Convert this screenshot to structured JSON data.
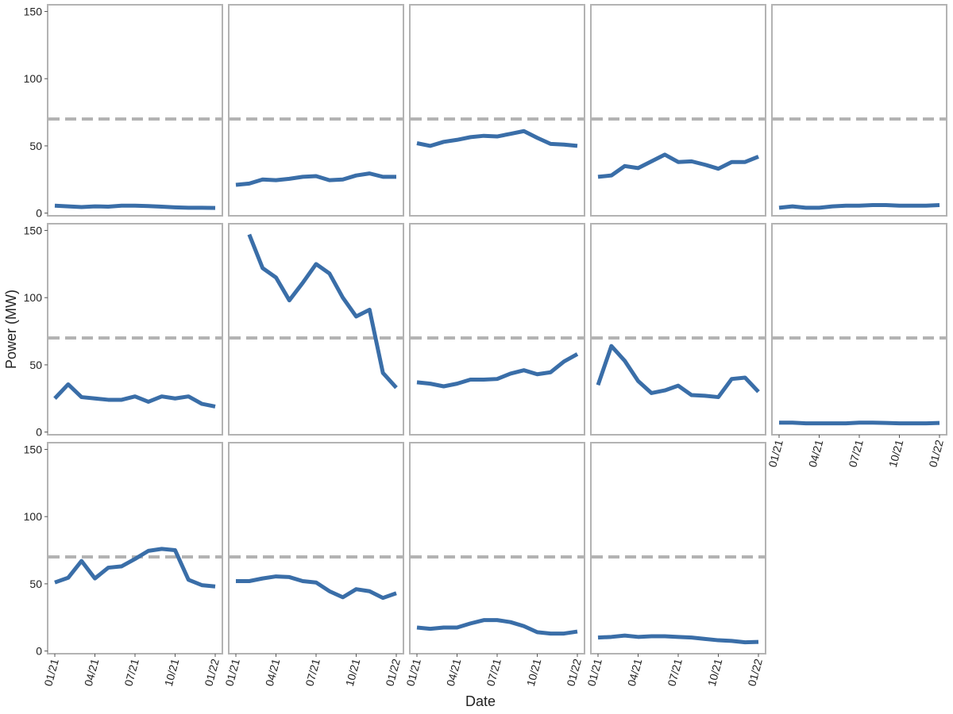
{
  "chart_data": {
    "type": "line",
    "xlabel": "Date",
    "ylabel": "Power (MW)",
    "x": [
      "01/21",
      "02/21",
      "03/21",
      "04/21",
      "05/21",
      "06/21",
      "07/21",
      "08/21",
      "09/21",
      "10/21",
      "11/21",
      "12/21",
      "01/22"
    ],
    "xticks": [
      "01/21",
      "04/21",
      "07/21",
      "10/21",
      "01/22"
    ],
    "ylim": [
      -2,
      155
    ],
    "yticks": [
      0,
      50,
      100,
      150
    ],
    "color": "#3a6ea8",
    "hline": 70,
    "hline_color": "#b3b3b3",
    "ncol": 5,
    "series": [
      {
        "values": [
          5.5,
          5,
          4.5,
          5,
          4.8,
          5.5,
          5.5,
          5.2,
          4.8,
          4.3,
          4,
          4,
          3.8
        ]
      },
      {
        "values": [
          21,
          22,
          25,
          24.5,
          25.5,
          27,
          27.5,
          24.5,
          25,
          28,
          29.5,
          27,
          27
        ]
      },
      {
        "values": [
          52,
          50,
          53,
          54.5,
          56.5,
          57.5,
          57,
          59,
          61,
          56,
          51.5,
          51,
          50
        ]
      },
      {
        "values": [
          27,
          28,
          35,
          33.5,
          38.5,
          43.5,
          38,
          38.5,
          36,
          33,
          38,
          38,
          42
        ]
      },
      {
        "values": [
          4,
          5,
          4,
          4,
          5,
          5.5,
          5.5,
          6,
          6,
          5.5,
          5.5,
          5.5,
          6
        ]
      },
      {
        "values": [
          25,
          35.5,
          26,
          25,
          24,
          24,
          26.5,
          22.5,
          26.5,
          25,
          26.5,
          21,
          19
        ]
      },
      {
        "values": [
          null,
          147,
          122,
          115,
          98,
          111,
          125,
          118,
          100,
          86,
          91,
          44,
          33
        ]
      },
      {
        "values": [
          37,
          36,
          34,
          36,
          39,
          39,
          39.5,
          43.5,
          46,
          43,
          44.5,
          52.5,
          58
        ]
      },
      {
        "values": [
          35,
          64,
          53,
          38,
          29,
          31,
          34.5,
          27.5,
          27,
          26,
          39.5,
          40.5,
          30
        ]
      },
      {
        "values": [
          7,
          7,
          6.5,
          6.5,
          6.5,
          6.5,
          7,
          7,
          6.8,
          6.5,
          6.5,
          6.5,
          6.8
        ]
      },
      {
        "values": [
          51,
          54.5,
          67,
          54,
          62,
          63,
          68.5,
          74.5,
          76,
          75,
          53,
          49,
          48
        ]
      },
      {
        "values": [
          52,
          52,
          54,
          55.5,
          55,
          52,
          51,
          44.5,
          40,
          46,
          44.5,
          39.5,
          43
        ]
      },
      {
        "values": [
          17.5,
          16.5,
          17.5,
          17.5,
          20.5,
          23,
          23,
          21.5,
          18.5,
          14,
          13,
          13,
          14.5
        ]
      },
      {
        "values": [
          10,
          10.5,
          11.5,
          10.5,
          11,
          11,
          10.5,
          10,
          9,
          8,
          7.5,
          6.5,
          6.8
        ]
      }
    ]
  }
}
